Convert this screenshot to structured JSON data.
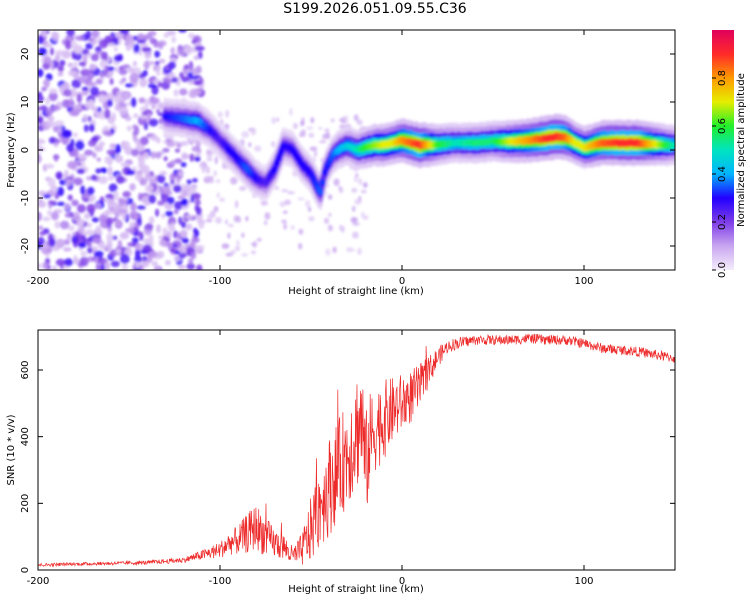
{
  "title": "S199.2026.051.09.55.C36",
  "colors": {
    "snr_line": "#ee2b2b",
    "axis": "#000000",
    "colormap": [
      "#f4edfb",
      "#c9a6f0",
      "#7e3de8",
      "#2200ff",
      "#00b4ff",
      "#00e4c0",
      "#23ef2b",
      "#e5ee00",
      "#ff9a00",
      "#ff2a2a",
      "#e0005c"
    ]
  },
  "chart_data": [
    {
      "type": "heatmap",
      "title": "",
      "xlabel": "Height of straight line (km)",
      "ylabel": "Frequency (Hz)",
      "xlim": [
        -200,
        150
      ],
      "ylim": [
        -25,
        25
      ],
      "xticks": [
        -200,
        -100,
        0,
        100
      ],
      "yticks": [
        -20,
        -10,
        0,
        10,
        20
      ],
      "colorbar": {
        "label": "Normalized spectral amplitude",
        "range": [
          0,
          1
        ],
        "ticks": [
          0.0,
          0.2,
          0.4,
          0.6,
          0.8
        ]
      },
      "ridge": {
        "description": "dominant frequency track",
        "x": [
          -130,
          -120,
          -112,
          -105,
          -100,
          -95,
          -90,
          -85,
          -80,
          -75,
          -70,
          -65,
          -60,
          -55,
          -50,
          -45,
          -42,
          -38,
          -35,
          -30,
          -25,
          -20,
          -15,
          -10,
          -5,
          0,
          5,
          10,
          20,
          30,
          40,
          50,
          60,
          70,
          80,
          85,
          90,
          95,
          100,
          110,
          120,
          130,
          140,
          150
        ],
        "y": [
          7,
          6.5,
          6,
          4,
          2,
          0,
          -2,
          -4,
          -6,
          -7,
          -4,
          1,
          0,
          -3,
          -5,
          -9,
          -4,
          -1,
          0,
          1,
          0,
          0.5,
          1,
          1,
          1.5,
          2,
          1.5,
          1,
          1.2,
          1.5,
          1.5,
          1.8,
          1.8,
          2,
          2.5,
          2.8,
          2.6,
          1.5,
          0.5,
          1.5,
          1.5,
          1.5,
          1.2,
          1.0
        ],
        "amplitude": [
          0.3,
          0.35,
          0.4,
          0.3,
          0.25,
          0.3,
          0.3,
          0.35,
          0.3,
          0.25,
          0.3,
          0.3,
          0.3,
          0.3,
          0.3,
          0.35,
          0.3,
          0.35,
          0.4,
          0.45,
          0.5,
          0.6,
          0.65,
          0.7,
          0.7,
          0.8,
          0.85,
          0.9,
          0.6,
          0.5,
          0.55,
          0.55,
          0.7,
          0.8,
          0.9,
          0.9,
          0.85,
          0.7,
          0.7,
          0.85,
          0.9,
          0.9,
          0.7,
          0.5
        ]
      },
      "noise_region": {
        "x": [
          -200,
          -110
        ],
        "amplitude": [
          0.05,
          0.3
        ]
      }
    },
    {
      "type": "line",
      "title": "",
      "xlabel": "Height of straight line (km)",
      "ylabel": "SNR (10 * v/v)",
      "xlim": [
        -200,
        150
      ],
      "ylim": [
        0,
        720
      ],
      "xticks": [
        -200,
        -100,
        0,
        100
      ],
      "yticks": [
        0,
        200,
        400,
        600
      ],
      "series": [
        {
          "name": "SNR",
          "x": [
            -200,
            -180,
            -160,
            -140,
            -120,
            -110,
            -100,
            -95,
            -90,
            -85,
            -80,
            -75,
            -70,
            -65,
            -60,
            -55,
            -50,
            -45,
            -40,
            -35,
            -30,
            -25,
            -22,
            -20,
            -18,
            -15,
            -10,
            -5,
            0,
            5,
            10,
            15,
            20,
            25,
            30,
            40,
            50,
            60,
            70,
            80,
            90,
            100,
            110,
            120,
            130,
            140,
            150
          ],
          "y": [
            15,
            18,
            20,
            22,
            30,
            45,
            60,
            80,
            90,
            110,
            130,
            100,
            80,
            70,
            40,
            60,
            120,
            200,
            250,
            300,
            350,
            420,
            450,
            300,
            380,
            420,
            450,
            480,
            500,
            520,
            550,
            600,
            640,
            670,
            680,
            690,
            690,
            690,
            695,
            690,
            690,
            680,
            665,
            660,
            655,
            645,
            635
          ],
          "spread": [
            5,
            5,
            5,
            6,
            8,
            15,
            25,
            35,
            45,
            60,
            70,
            60,
            45,
            40,
            30,
            50,
            100,
            130,
            150,
            150,
            160,
            180,
            180,
            170,
            150,
            130,
            120,
            100,
            90,
            80,
            70,
            45,
            30,
            20,
            18,
            15,
            15,
            15,
            15,
            15,
            15,
            15,
            15,
            15,
            15,
            15,
            15
          ]
        }
      ]
    }
  ]
}
